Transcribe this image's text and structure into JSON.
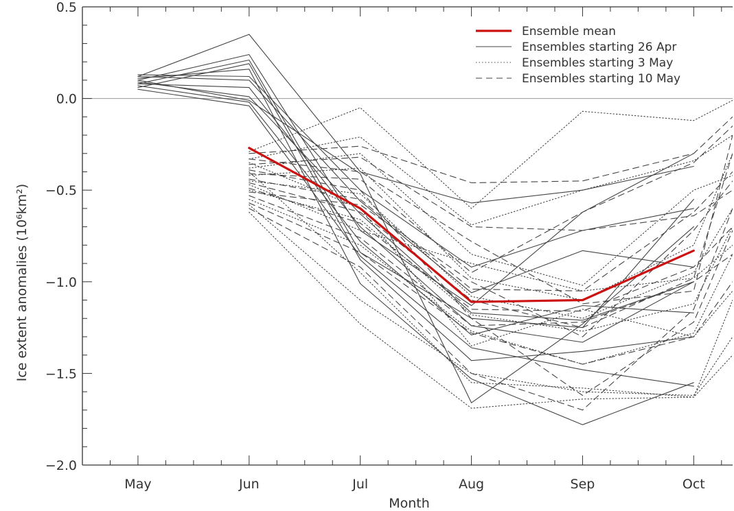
{
  "chart_data": {
    "type": "line",
    "xlabel": "Month",
    "ylabel": "Ice extent anomalies (10⁶km²)",
    "categories": [
      "May",
      "Jun",
      "Jul",
      "Aug",
      "Sep",
      "Oct"
    ],
    "x_index_range": [
      -0.5,
      5.35
    ],
    "ylim": [
      -2.0,
      0.5
    ],
    "yticks": [
      {
        "value": 0.5,
        "label": "0.5"
      },
      {
        "value": 0.0,
        "label": "0.0"
      },
      {
        "value": -0.5,
        "label": "−0.5"
      },
      {
        "value": -1.0,
        "label": "−1.0"
      },
      {
        "value": -1.5,
        "label": "−1.5"
      },
      {
        "value": -2.0,
        "label": "−2.0"
      }
    ],
    "reference_line": 0.0,
    "grid": false,
    "legend_position": "top-right",
    "legend": [
      {
        "label": "Ensemble mean",
        "style": "mean"
      },
      {
        "label": "Ensembles starting 26 Apr",
        "style": "solid"
      },
      {
        "label": "Ensembles starting 3 May",
        "style": "dotted"
      },
      {
        "label": "Ensembles starting 10 May",
        "style": "dashed"
      }
    ],
    "colors": {
      "mean": "#cc1111",
      "members": "#444444",
      "axis": "#333333"
    },
    "groups": [
      {
        "name": "Ensemble mean",
        "style": "mean",
        "series": [
          {
            "x": [
              1,
              2,
              3,
              4,
              5
            ],
            "y": [
              -0.27,
              -0.6,
              -1.11,
              -1.1,
              -0.83
            ]
          }
        ]
      },
      {
        "name": "Ensembles starting 26 Apr",
        "style": "solid",
        "series": [
          {
            "x": [
              0,
              1,
              2,
              3,
              4,
              5
            ],
            "y": [
              0.12,
              0.35,
              -0.4,
              -0.57,
              -0.5,
              -0.37
            ]
          },
          {
            "x": [
              0,
              1,
              2,
              3,
              4,
              5
            ],
            "y": [
              0.1,
              0.24,
              -0.72,
              -1.13,
              -0.62,
              -0.3
            ]
          },
          {
            "x": [
              0,
              1,
              2,
              3,
              4,
              5
            ],
            "y": [
              0.08,
              0.21,
              -0.84,
              -1.2,
              -1.25,
              -0.55
            ]
          },
          {
            "x": [
              0,
              1,
              2,
              3,
              4,
              5
            ],
            "y": [
              0.06,
              0.19,
              -0.88,
              -1.43,
              -1.38,
              -1.3
            ]
          },
          {
            "x": [
              0,
              1,
              2,
              3,
              4,
              5
            ],
            "y": [
              0.11,
              0.16,
              -1.01,
              -1.53,
              -1.78,
              -1.55
            ]
          },
          {
            "x": [
              0,
              1,
              2,
              3,
              4,
              5
            ],
            "y": [
              0.13,
              0.12,
              -0.5,
              -0.92,
              -0.72,
              -0.6
            ]
          },
          {
            "x": [
              0,
              1,
              2,
              3,
              4,
              5
            ],
            "y": [
              0.09,
              0.01,
              -0.63,
              -1.17,
              -1.21,
              -1.0
            ]
          },
          {
            "x": [
              0,
              1,
              2,
              3,
              4,
              5
            ],
            "y": [
              0.07,
              -0.02,
              -0.78,
              -1.29,
              -1.13,
              -1.17
            ]
          },
          {
            "x": [
              0,
              1,
              2,
              3,
              4,
              5
            ],
            "y": [
              0.05,
              -0.04,
              -0.86,
              -1.36,
              -1.48,
              -1.57
            ]
          },
          {
            "x": [
              0,
              1,
              2,
              3,
              4,
              5
            ],
            "y": [
              0.1,
              -0.01,
              -0.41,
              -1.66,
              -1.23,
              -0.7
            ]
          },
          {
            "x": [
              0,
              1,
              2,
              3,
              4,
              5
            ],
            "y": [
              0.12,
              0.1,
              -0.56,
              -1.06,
              -0.83,
              -0.92
            ]
          },
          {
            "x": [
              0,
              1,
              2,
              3,
              4,
              5
            ],
            "y": [
              0.08,
              0.06,
              -0.7,
              -1.24,
              -1.33,
              -1.0
            ]
          }
        ]
      },
      {
        "name": "Ensembles starting 3 May",
        "style": "dotted",
        "series": [
          {
            "x": [
              1,
              2,
              3,
              4,
              5,
              5.35
            ],
            "y": [
              -0.29,
              -0.05,
              -0.6,
              -0.07,
              -0.12,
              -0.01
            ]
          },
          {
            "x": [
              1,
              2,
              3,
              4,
              5,
              5.35
            ],
            "y": [
              -0.33,
              -0.21,
              -0.69,
              -0.5,
              -0.34,
              -0.2
            ]
          },
          {
            "x": [
              1,
              2,
              3,
              4,
              5,
              5.35
            ],
            "y": [
              -0.38,
              -0.3,
              -0.85,
              -1.02,
              -0.5,
              -0.42
            ]
          },
          {
            "x": [
              1,
              2,
              3,
              4,
              5,
              5.35
            ],
            "y": [
              -0.42,
              -0.38,
              -0.98,
              -1.1,
              -0.8,
              -0.3
            ]
          },
          {
            "x": [
              1,
              2,
              3,
              4,
              5,
              5.35
            ],
            "y": [
              -0.45,
              -0.52,
              -1.08,
              -1.2,
              -0.95,
              -0.6
            ]
          },
          {
            "x": [
              1,
              2,
              3,
              4,
              5,
              5.35
            ],
            "y": [
              -0.5,
              -0.66,
              -1.18,
              -1.27,
              -1.12,
              -0.7
            ]
          },
          {
            "x": [
              1,
              2,
              3,
              4,
              5,
              5.35
            ],
            "y": [
              -0.55,
              -0.8,
              -1.27,
              -1.45,
              -1.28,
              -0.85
            ]
          },
          {
            "x": [
              1,
              2,
              3,
              4,
              5,
              5.35
            ],
            "y": [
              -0.58,
              -1.1,
              -1.5,
              -1.6,
              -1.62,
              -1.3
            ]
          },
          {
            "x": [
              1,
              2,
              3,
              4,
              5,
              5.35
            ],
            "y": [
              -0.62,
              -1.23,
              -1.69,
              -1.64,
              -1.63,
              -1.4
            ]
          },
          {
            "x": [
              1,
              2,
              3,
              4,
              5,
              5.35
            ],
            "y": [
              -0.4,
              -0.95,
              -1.55,
              -1.58,
              -1.63,
              -1.1
            ]
          },
          {
            "x": [
              1,
              2,
              3,
              4,
              5,
              5.35
            ],
            "y": [
              -0.35,
              -0.6,
              -1.35,
              -1.15,
              -1.3,
              -1.05
            ]
          },
          {
            "x": [
              1,
              2,
              3,
              4,
              5,
              5.35
            ],
            "y": [
              -0.47,
              -0.72,
              -0.9,
              -1.05,
              -0.98,
              -0.8
            ]
          }
        ]
      },
      {
        "name": "Ensembles starting 10 May",
        "style": "dashed",
        "series": [
          {
            "x": [
              1,
              2,
              3,
              4,
              5,
              5.35
            ],
            "y": [
              -0.3,
              -0.26,
              -0.46,
              -0.45,
              -0.3,
              -0.1
            ]
          },
          {
            "x": [
              1,
              2,
              3,
              4,
              5,
              5.35
            ],
            "y": [
              -0.36,
              -0.32,
              -0.7,
              -0.72,
              -0.64,
              -0.5
            ]
          },
          {
            "x": [
              1,
              2,
              3,
              4,
              5,
              5.35
            ],
            "y": [
              -0.41,
              -0.44,
              -0.95,
              -0.62,
              -0.35,
              -0.15
            ]
          },
          {
            "x": [
              1,
              2,
              3,
              4,
              5,
              5.35
            ],
            "y": [
              -0.44,
              -0.55,
              -1.04,
              -1.05,
              -0.62,
              -0.4
            ]
          },
          {
            "x": [
              1,
              2,
              3,
              4,
              5,
              5.35
            ],
            "y": [
              -0.49,
              -0.68,
              -1.15,
              -1.16,
              -0.92,
              -0.7
            ]
          },
          {
            "x": [
              1,
              2,
              3,
              4,
              5,
              5.35
            ],
            "y": [
              -0.53,
              -0.76,
              -1.24,
              -1.22,
              -1.0,
              -0.85
            ]
          },
          {
            "x": [
              1,
              2,
              3,
              4,
              5,
              5.35
            ],
            "y": [
              -0.57,
              -0.84,
              -1.28,
              -1.45,
              -1.3,
              -1.0
            ]
          },
          {
            "x": [
              1,
              2,
              3,
              4,
              5,
              5.35
            ],
            "y": [
              -0.6,
              -0.92,
              -1.5,
              -1.7,
              -1.15,
              -0.6
            ]
          },
          {
            "x": [
              1,
              2,
              3,
              4,
              5,
              5.35
            ],
            "y": [
              -0.46,
              -0.62,
              -1.1,
              -1.25,
              -0.98,
              -0.3
            ]
          },
          {
            "x": [
              1,
              2,
              3,
              4,
              5,
              5.35
            ],
            "y": [
              -0.39,
              -0.5,
              -1.2,
              -1.62,
              -1.22,
              -0.72
            ]
          },
          {
            "x": [
              1,
              2,
              3,
              4,
              5,
              5.35
            ],
            "y": [
              -0.33,
              -0.4,
              -0.78,
              -1.12,
              -1.05,
              -0.2
            ]
          },
          {
            "x": [
              1,
              2,
              3,
              4,
              5,
              5.35
            ],
            "y": [
              -0.51,
              -0.58,
              -1.0,
              -1.3,
              -0.72,
              -0.45
            ]
          }
        ]
      }
    ]
  }
}
